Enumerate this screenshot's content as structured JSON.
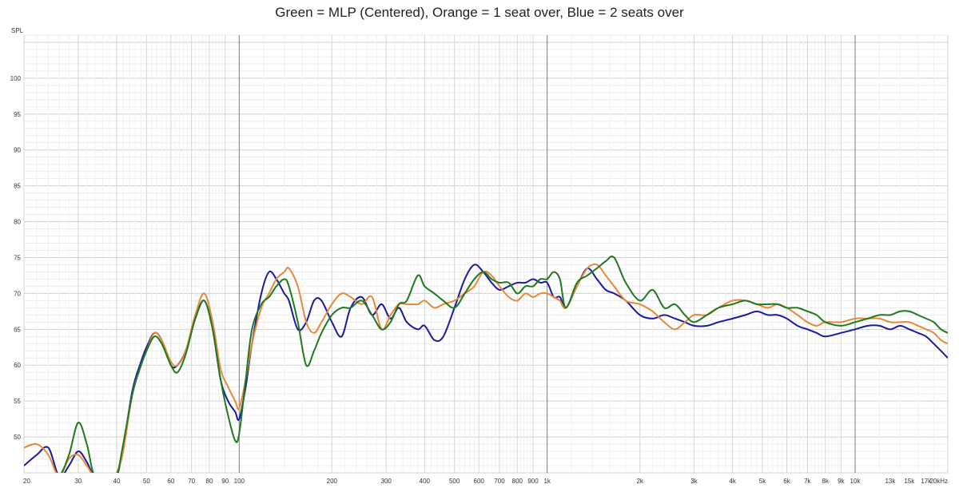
{
  "chart_data": {
    "type": "line",
    "title": "Green = MLP (Centered), Orange = 1 seat over, Blue = 2 seats over",
    "ylabel": "SPL",
    "xlabel": "",
    "x_scale": "log",
    "xlim": [
      20,
      20000
    ],
    "ylim": [
      45,
      106
    ],
    "grid": true,
    "legend": "none",
    "y_ticks": [
      50,
      55,
      60,
      65,
      70,
      75,
      80,
      85,
      90,
      95,
      100
    ],
    "y_tick_labels": [
      "50",
      "55",
      "60",
      "65",
      "70",
      "75",
      "80",
      "85",
      "90",
      "95",
      "100"
    ],
    "x_ticks": [
      20,
      30,
      40,
      50,
      60,
      70,
      80,
      90,
      100,
      200,
      300,
      400,
      500,
      600,
      700,
      800,
      900,
      1000,
      2000,
      3000,
      4000,
      5000,
      6000,
      7000,
      8000,
      9000,
      10000,
      13000,
      15000,
      17000,
      20000
    ],
    "x_tick_labels": [
      "20",
      "30",
      "40",
      "50",
      "60",
      "70",
      "80",
      "90",
      "100",
      "200",
      "300",
      "400",
      "500",
      "600",
      "700",
      "800",
      "900",
      "1k",
      "2k",
      "3k",
      "4k",
      "5k",
      "6k",
      "7k",
      "8k",
      "9k",
      "10k",
      "13k",
      "15k",
      "17k",
      "20kHz"
    ],
    "series": [
      {
        "color": "#1e7a1e",
        "x": [
          20,
          22,
          24,
          26,
          28,
          30,
          32,
          34,
          38,
          40,
          42,
          45,
          48,
          50,
          53,
          56,
          60,
          63,
          67,
          72,
          77,
          82,
          87,
          92,
          97,
          100,
          105,
          110,
          118,
          125,
          132,
          140,
          145,
          155,
          165,
          175,
          185,
          200,
          215,
          230,
          250,
          270,
          290,
          310,
          330,
          350,
          380,
          400,
          430,
          460,
          500,
          540,
          580,
          620,
          660,
          700,
          750,
          800,
          850,
          900,
          950,
          1000,
          1050,
          1100,
          1150,
          1250,
          1350,
          1450,
          1550,
          1650,
          1800,
          2000,
          2200,
          2400,
          2600,
          2800,
          3000,
          3300,
          3600,
          4000,
          4400,
          4800,
          5200,
          5600,
          6000,
          6500,
          7000,
          7500,
          8000,
          9000,
          10000,
          11000,
          12000,
          13000,
          14000,
          15000,
          16000,
          17000,
          18000,
          19000,
          20000
        ],
        "values": [
          44.5,
          44.5,
          44.5,
          44.5,
          47.5,
          52.0,
          49.0,
          44.5,
          44.5,
          44.5,
          49.0,
          56.0,
          60.0,
          62.0,
          64.0,
          63.0,
          60.0,
          59.0,
          61.5,
          66.5,
          69.0,
          65.0,
          58.0,
          53.0,
          49.5,
          50.5,
          58.0,
          65.0,
          68.5,
          69.5,
          71.0,
          72.0,
          71.0,
          66.0,
          60.0,
          62.0,
          64.5,
          67.0,
          68.0,
          68.0,
          69.0,
          67.0,
          65.0,
          66.0,
          68.5,
          69.0,
          72.5,
          71.0,
          70.0,
          69.0,
          68.0,
          70.0,
          72.0,
          73.0,
          72.0,
          71.5,
          71.5,
          70.0,
          71.0,
          71.0,
          72.0,
          72.0,
          73.0,
          72.0,
          68.0,
          71.5,
          72.5,
          73.5,
          74.5,
          75.0,
          71.5,
          69.0,
          70.5,
          68.0,
          68.5,
          67.0,
          66.0,
          67.0,
          68.0,
          68.5,
          69.0,
          68.5,
          68.5,
          68.5,
          68.0,
          68.0,
          67.5,
          67.0,
          66.0,
          65.5,
          66.0,
          66.5,
          67.0,
          67.0,
          67.5,
          67.5,
          67.0,
          66.5,
          66.0,
          65.0,
          64.5
        ]
      },
      {
        "color": "#e8873a",
        "x": [
          20,
          22,
          24,
          26,
          28,
          30,
          32,
          34,
          38,
          40,
          42,
          45,
          48,
          50,
          53,
          56,
          60,
          63,
          67,
          72,
          77,
          82,
          87,
          92,
          97,
          100,
          105,
          110,
          118,
          125,
          132,
          140,
          145,
          155,
          165,
          175,
          185,
          200,
          215,
          230,
          250,
          270,
          290,
          310,
          330,
          350,
          380,
          400,
          430,
          460,
          500,
          540,
          580,
          620,
          660,
          700,
          750,
          800,
          850,
          900,
          950,
          1000,
          1050,
          1100,
          1150,
          1250,
          1350,
          1450,
          1550,
          1650,
          1800,
          2000,
          2200,
          2400,
          2600,
          2800,
          3000,
          3300,
          3600,
          4000,
          4400,
          4800,
          5200,
          5600,
          6000,
          6500,
          7000,
          7500,
          8000,
          9000,
          10000,
          11000,
          12000,
          13000,
          14000,
          15000,
          16000,
          17000,
          18000,
          19000,
          20000
        ],
        "values": [
          48.5,
          49.0,
          47.5,
          44.5,
          47.0,
          47.5,
          46.0,
          44.5,
          44.5,
          45.0,
          48.0,
          56.0,
          60.0,
          62.0,
          64.5,
          63.5,
          60.5,
          60.0,
          62.0,
          67.0,
          70.0,
          66.0,
          59.5,
          57.0,
          55.0,
          54.0,
          58.0,
          63.0,
          68.0,
          70.0,
          72.0,
          73.0,
          73.5,
          71.0,
          66.0,
          64.5,
          66.0,
          68.5,
          70.0,
          69.5,
          68.5,
          69.5,
          65.0,
          67.0,
          68.5,
          68.5,
          68.5,
          69.0,
          68.0,
          68.5,
          69.0,
          70.0,
          71.0,
          73.0,
          72.5,
          71.0,
          69.5,
          69.0,
          70.0,
          69.5,
          70.0,
          70.0,
          69.5,
          69.0,
          68.0,
          71.0,
          73.5,
          74.0,
          72.5,
          71.0,
          69.0,
          68.5,
          67.5,
          66.0,
          65.0,
          66.0,
          67.0,
          67.0,
          68.0,
          69.0,
          69.0,
          68.5,
          68.0,
          68.5,
          68.0,
          67.0,
          66.0,
          65.5,
          66.0,
          66.0,
          66.5,
          66.5,
          66.5,
          66.0,
          66.0,
          66.0,
          65.5,
          65.0,
          64.5,
          63.5,
          63.0
        ]
      },
      {
        "color": "#1a1aa0",
        "x": [
          20,
          22,
          24,
          26,
          28,
          30,
          32,
          34,
          38,
          40,
          42,
          45,
          48,
          50,
          53,
          56,
          60,
          63,
          67,
          72,
          77,
          82,
          87,
          92,
          97,
          100,
          105,
          110,
          118,
          125,
          132,
          140,
          145,
          155,
          165,
          175,
          185,
          200,
          215,
          230,
          250,
          270,
          290,
          310,
          330,
          350,
          380,
          400,
          430,
          460,
          500,
          540,
          580,
          620,
          660,
          700,
          750,
          800,
          850,
          900,
          950,
          1000,
          1050,
          1100,
          1150,
          1250,
          1350,
          1450,
          1550,
          1650,
          1800,
          2000,
          2200,
          2400,
          2600,
          2800,
          3000,
          3300,
          3600,
          4000,
          4400,
          4800,
          5200,
          5600,
          6000,
          6500,
          7000,
          7500,
          8000,
          9000,
          10000,
          11000,
          12000,
          13000,
          14000,
          15000,
          16000,
          17000,
          18000,
          19000,
          20000
        ],
        "values": [
          46.0,
          47.5,
          48.5,
          44.5,
          46.0,
          48.0,
          46.5,
          44.5,
          44.5,
          44.5,
          48.5,
          56.5,
          60.5,
          62.5,
          64.5,
          63.5,
          60.0,
          60.0,
          62.0,
          66.5,
          69.0,
          65.0,
          58.0,
          55.0,
          53.5,
          52.5,
          57.0,
          63.0,
          70.0,
          73.0,
          72.0,
          70.0,
          69.0,
          65.0,
          66.0,
          69.0,
          69.0,
          66.0,
          64.0,
          68.0,
          69.5,
          67.0,
          68.5,
          66.5,
          68.0,
          66.0,
          65.0,
          65.5,
          63.5,
          64.0,
          68.0,
          72.0,
          74.0,
          73.0,
          71.5,
          70.5,
          71.0,
          71.5,
          71.5,
          72.0,
          71.5,
          71.5,
          69.5,
          69.5,
          68.0,
          71.0,
          73.5,
          72.0,
          70.5,
          70.0,
          69.0,
          67.0,
          66.5,
          67.0,
          66.5,
          66.0,
          65.5,
          65.5,
          66.0,
          66.5,
          67.0,
          67.5,
          67.0,
          67.0,
          66.5,
          65.5,
          65.0,
          64.5,
          64.0,
          64.5,
          65.0,
          65.5,
          65.5,
          65.0,
          65.5,
          65.0,
          64.5,
          64.0,
          63.0,
          62.0,
          61.0
        ]
      }
    ]
  }
}
